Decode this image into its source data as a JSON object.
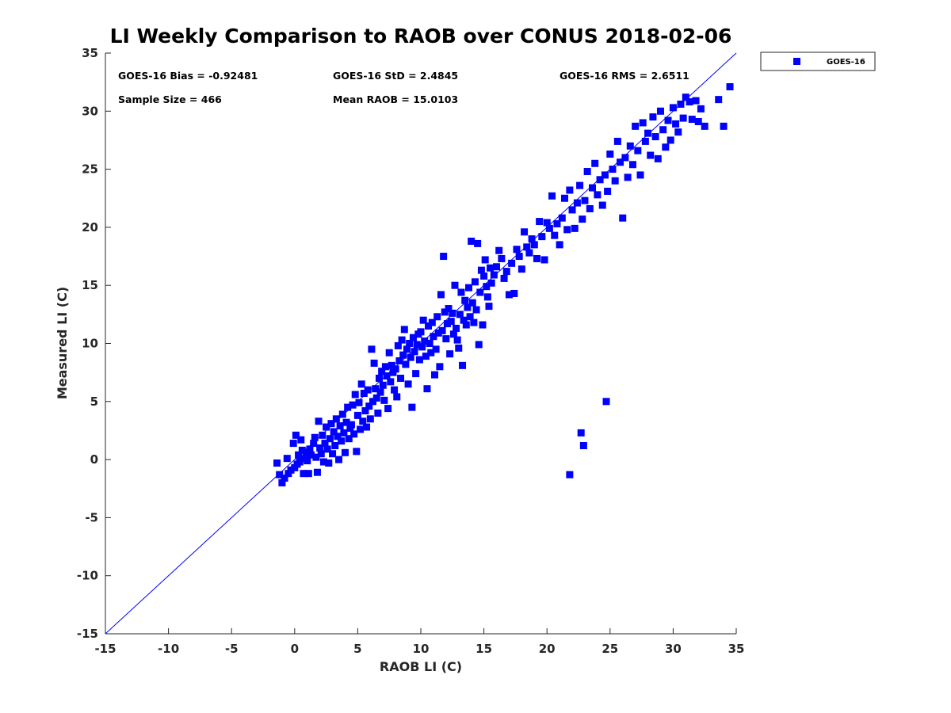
{
  "chart_data": {
    "type": "scatter",
    "title": "LI Weekly Comparison to RAOB over CONUS 2018-02-06",
    "xlabel": "RAOB LI (C)",
    "ylabel": "Measured LI (C)",
    "xlim": [
      -15,
      35
    ],
    "ylim": [
      -15,
      35
    ],
    "xticks": [
      "-15",
      "-10",
      "-5",
      "0",
      "5",
      "10",
      "15",
      "20",
      "25",
      "30",
      "35"
    ],
    "yticks": [
      "-15",
      "-10",
      "-5",
      "0",
      "5",
      "10",
      "15",
      "20",
      "25",
      "30",
      "35"
    ],
    "grid": false,
    "legend_position": "outside-top-right",
    "reference_line": {
      "name": "1:1 line",
      "from": [
        -15,
        -15
      ],
      "to": [
        35,
        35
      ],
      "color": "#0000ff"
    },
    "annotations": [
      "GOES-16 Bias = -0.92481",
      "GOES-16 StD = 2.4845",
      "GOES-16 RMS = 2.6511",
      "Sample Size = 466",
      "Mean RAOB = 15.0103"
    ],
    "series": [
      {
        "name": "GOES-16",
        "color": "#0000ff",
        "marker": "square",
        "points": [
          [
            -1.4,
            -0.3
          ],
          [
            -1.2,
            -1.3
          ],
          [
            -1.0,
            -2.0
          ],
          [
            -0.8,
            -1.6
          ],
          [
            -0.6,
            0.1
          ],
          [
            -0.5,
            -1.2
          ],
          [
            -0.3,
            -0.9
          ],
          [
            -0.1,
            1.4
          ],
          [
            0.0,
            -0.7
          ],
          [
            0.1,
            2.1
          ],
          [
            0.2,
            -0.4
          ],
          [
            0.3,
            0.4
          ],
          [
            0.4,
            -0.2
          ],
          [
            0.5,
            1.7
          ],
          [
            0.6,
            0.8
          ],
          [
            0.7,
            -1.2
          ],
          [
            0.8,
            0.1
          ],
          [
            0.9,
            0.6
          ],
          [
            1.0,
            -0.1
          ],
          [
            1.1,
            -1.2
          ],
          [
            1.2,
            0.9
          ],
          [
            1.3,
            0.4
          ],
          [
            1.5,
            1.4
          ],
          [
            1.6,
            1.9
          ],
          [
            1.7,
            0.2
          ],
          [
            1.8,
            -1.1
          ],
          [
            1.9,
            3.3
          ],
          [
            2.0,
            1.0
          ],
          [
            2.1,
            0.5
          ],
          [
            2.2,
            2.1
          ],
          [
            2.3,
            -0.2
          ],
          [
            2.4,
            1.4
          ],
          [
            2.5,
            2.8
          ],
          [
            2.6,
            0.9
          ],
          [
            2.7,
            -0.3
          ],
          [
            2.8,
            1.8
          ],
          [
            2.9,
            3.1
          ],
          [
            3.0,
            0.5
          ],
          [
            3.1,
            2.4
          ],
          [
            3.2,
            1.2
          ],
          [
            3.3,
            3.5
          ],
          [
            3.4,
            2.0
          ],
          [
            3.5,
            0.0
          ],
          [
            3.6,
            2.9
          ],
          [
            3.7,
            1.6
          ],
          [
            3.8,
            3.9
          ],
          [
            3.9,
            2.3
          ],
          [
            4.0,
            0.6
          ],
          [
            4.1,
            3.2
          ],
          [
            4.2,
            4.5
          ],
          [
            4.3,
            1.8
          ],
          [
            4.4,
            2.7
          ],
          [
            4.5,
            3.0
          ],
          [
            4.6,
            4.7
          ],
          [
            4.7,
            2.2
          ],
          [
            4.8,
            5.6
          ],
          [
            4.9,
            0.7
          ],
          [
            5.0,
            3.8
          ],
          [
            5.1,
            4.9
          ],
          [
            5.2,
            2.6
          ],
          [
            5.3,
            6.5
          ],
          [
            5.4,
            3.3
          ],
          [
            5.5,
            5.7
          ],
          [
            5.6,
            4.2
          ],
          [
            5.7,
            2.8
          ],
          [
            5.8,
            6.0
          ],
          [
            5.9,
            4.6
          ],
          [
            6.0,
            3.5
          ],
          [
            6.1,
            9.5
          ],
          [
            6.2,
            5.0
          ],
          [
            6.3,
            8.3
          ],
          [
            6.4,
            6.1
          ],
          [
            6.5,
            5.3
          ],
          [
            6.6,
            4.0
          ],
          [
            6.7,
            7.0
          ],
          [
            6.8,
            5.8
          ],
          [
            6.9,
            7.6
          ],
          [
            7.0,
            6.4
          ],
          [
            7.1,
            5.1
          ],
          [
            7.2,
            8.0
          ],
          [
            7.3,
            7.2
          ],
          [
            7.4,
            4.4
          ],
          [
            7.5,
            9.2
          ],
          [
            7.6,
            6.7
          ],
          [
            7.7,
            8.1
          ],
          [
            7.8,
            7.5
          ],
          [
            7.9,
            6.0
          ],
          [
            8.0,
            7.8
          ],
          [
            8.1,
            5.4
          ],
          [
            8.2,
            9.8
          ],
          [
            8.3,
            8.5
          ],
          [
            8.4,
            7.0
          ],
          [
            8.5,
            10.3
          ],
          [
            8.6,
            9.0
          ],
          [
            8.7,
            11.2
          ],
          [
            8.8,
            8.2
          ],
          [
            8.9,
            9.5
          ],
          [
            9.0,
            6.5
          ],
          [
            9.1,
            10.0
          ],
          [
            9.2,
            8.8
          ],
          [
            9.3,
            4.5
          ],
          [
            9.4,
            10.5
          ],
          [
            9.5,
            9.3
          ],
          [
            9.6,
            7.4
          ],
          [
            9.7,
            9.9
          ],
          [
            9.8,
            10.8
          ],
          [
            9.9,
            8.6
          ],
          [
            10.0,
            11.0
          ],
          [
            10.1,
            9.7
          ],
          [
            10.2,
            12.0
          ],
          [
            10.3,
            10.2
          ],
          [
            10.4,
            8.9
          ],
          [
            10.5,
            6.1
          ],
          [
            10.6,
            11.5
          ],
          [
            10.7,
            10.0
          ],
          [
            10.8,
            9.2
          ],
          [
            10.9,
            11.8
          ],
          [
            11.0,
            10.6
          ],
          [
            11.1,
            7.3
          ],
          [
            11.2,
            9.5
          ],
          [
            11.3,
            12.3
          ],
          [
            11.4,
            10.9
          ],
          [
            11.5,
            8.0
          ],
          [
            11.6,
            14.2
          ],
          [
            11.7,
            11.1
          ],
          [
            11.8,
            17.5
          ],
          [
            11.9,
            12.7
          ],
          [
            12.0,
            10.4
          ],
          [
            12.1,
            11.7
          ],
          [
            12.2,
            13.0
          ],
          [
            12.3,
            9.1
          ],
          [
            12.4,
            11.9
          ],
          [
            12.5,
            12.6
          ],
          [
            12.6,
            10.8
          ],
          [
            12.7,
            15.0
          ],
          [
            12.8,
            11.3
          ],
          [
            12.9,
            10.3
          ],
          [
            13.0,
            9.6
          ],
          [
            13.1,
            12.5
          ],
          [
            13.2,
            14.4
          ],
          [
            13.3,
            8.1
          ],
          [
            13.4,
            12.0
          ],
          [
            13.5,
            13.7
          ],
          [
            13.6,
            11.6
          ],
          [
            13.7,
            13.1
          ],
          [
            13.8,
            14.8
          ],
          [
            13.9,
            12.3
          ],
          [
            14.0,
            18.8
          ],
          [
            14.1,
            13.5
          ],
          [
            14.2,
            11.8
          ],
          [
            14.3,
            15.3
          ],
          [
            14.4,
            12.9
          ],
          [
            14.5,
            18.6
          ],
          [
            14.6,
            9.9
          ],
          [
            14.7,
            14.4
          ],
          [
            14.8,
            16.3
          ],
          [
            14.9,
            11.6
          ],
          [
            15.0,
            15.8
          ],
          [
            15.1,
            17.2
          ],
          [
            15.2,
            14.9
          ],
          [
            15.3,
            14.0
          ],
          [
            15.4,
            13.2
          ],
          [
            15.5,
            16.5
          ],
          [
            15.6,
            15.2
          ],
          [
            15.8,
            15.9
          ],
          [
            16.0,
            16.6
          ],
          [
            16.2,
            18.0
          ],
          [
            16.4,
            17.3
          ],
          [
            16.6,
            15.6
          ],
          [
            16.8,
            16.2
          ],
          [
            17.0,
            14.2
          ],
          [
            17.2,
            16.9
          ],
          [
            17.4,
            14.3
          ],
          [
            17.6,
            18.1
          ],
          [
            17.8,
            17.5
          ],
          [
            18.0,
            16.4
          ],
          [
            18.2,
            19.6
          ],
          [
            18.4,
            18.3
          ],
          [
            18.6,
            17.8
          ],
          [
            18.8,
            19.0
          ],
          [
            19.0,
            18.5
          ],
          [
            19.2,
            17.3
          ],
          [
            19.4,
            20.5
          ],
          [
            19.6,
            19.2
          ],
          [
            19.8,
            17.2
          ],
          [
            20.0,
            20.4
          ],
          [
            20.2,
            19.9
          ],
          [
            20.4,
            22.7
          ],
          [
            20.6,
            19.3
          ],
          [
            20.8,
            20.3
          ],
          [
            21.0,
            18.5
          ],
          [
            21.2,
            20.8
          ],
          [
            21.4,
            22.5
          ],
          [
            21.6,
            19.8
          ],
          [
            21.8,
            23.2
          ],
          [
            22.0,
            21.5
          ],
          [
            22.2,
            19.9
          ],
          [
            22.4,
            22.1
          ],
          [
            22.6,
            23.6
          ],
          [
            22.8,
            20.7
          ],
          [
            23.0,
            22.3
          ],
          [
            23.2,
            24.8
          ],
          [
            23.4,
            21.6
          ],
          [
            23.6,
            23.4
          ],
          [
            23.8,
            25.5
          ],
          [
            24.0,
            22.8
          ],
          [
            24.2,
            24.1
          ],
          [
            24.4,
            21.9
          ],
          [
            24.6,
            24.5
          ],
          [
            24.8,
            23.1
          ],
          [
            25.0,
            26.3
          ],
          [
            25.2,
            25.0
          ],
          [
            25.4,
            24.0
          ],
          [
            25.6,
            27.4
          ],
          [
            25.8,
            25.6
          ],
          [
            26.0,
            20.8
          ],
          [
            26.2,
            26.0
          ],
          [
            26.4,
            24.3
          ],
          [
            26.6,
            27.0
          ],
          [
            26.8,
            25.4
          ],
          [
            27.0,
            28.7
          ],
          [
            27.2,
            26.6
          ],
          [
            27.4,
            24.5
          ],
          [
            27.6,
            29.0
          ],
          [
            27.8,
            27.4
          ],
          [
            28.0,
            28.1
          ],
          [
            28.2,
            26.2
          ],
          [
            28.4,
            29.5
          ],
          [
            28.6,
            27.8
          ],
          [
            28.8,
            25.9
          ],
          [
            29.0,
            30.0
          ],
          [
            29.2,
            28.4
          ],
          [
            29.4,
            26.9
          ],
          [
            29.6,
            29.2
          ],
          [
            29.8,
            27.5
          ],
          [
            30.0,
            30.3
          ],
          [
            30.2,
            28.9
          ],
          [
            30.4,
            28.2
          ],
          [
            30.6,
            30.6
          ],
          [
            30.8,
            29.4
          ],
          [
            31.0,
            31.2
          ],
          [
            31.3,
            30.8
          ],
          [
            31.5,
            29.3
          ],
          [
            31.8,
            30.9
          ],
          [
            32.0,
            29.1
          ],
          [
            32.2,
            30.2
          ],
          [
            32.5,
            28.7
          ],
          [
            33.6,
            31.0
          ],
          [
            34.0,
            28.7
          ],
          [
            34.5,
            32.1
          ],
          [
            22.7,
            2.3
          ],
          [
            22.9,
            1.2
          ],
          [
            21.8,
            -1.3
          ],
          [
            24.7,
            5.0
          ]
        ]
      }
    ]
  }
}
